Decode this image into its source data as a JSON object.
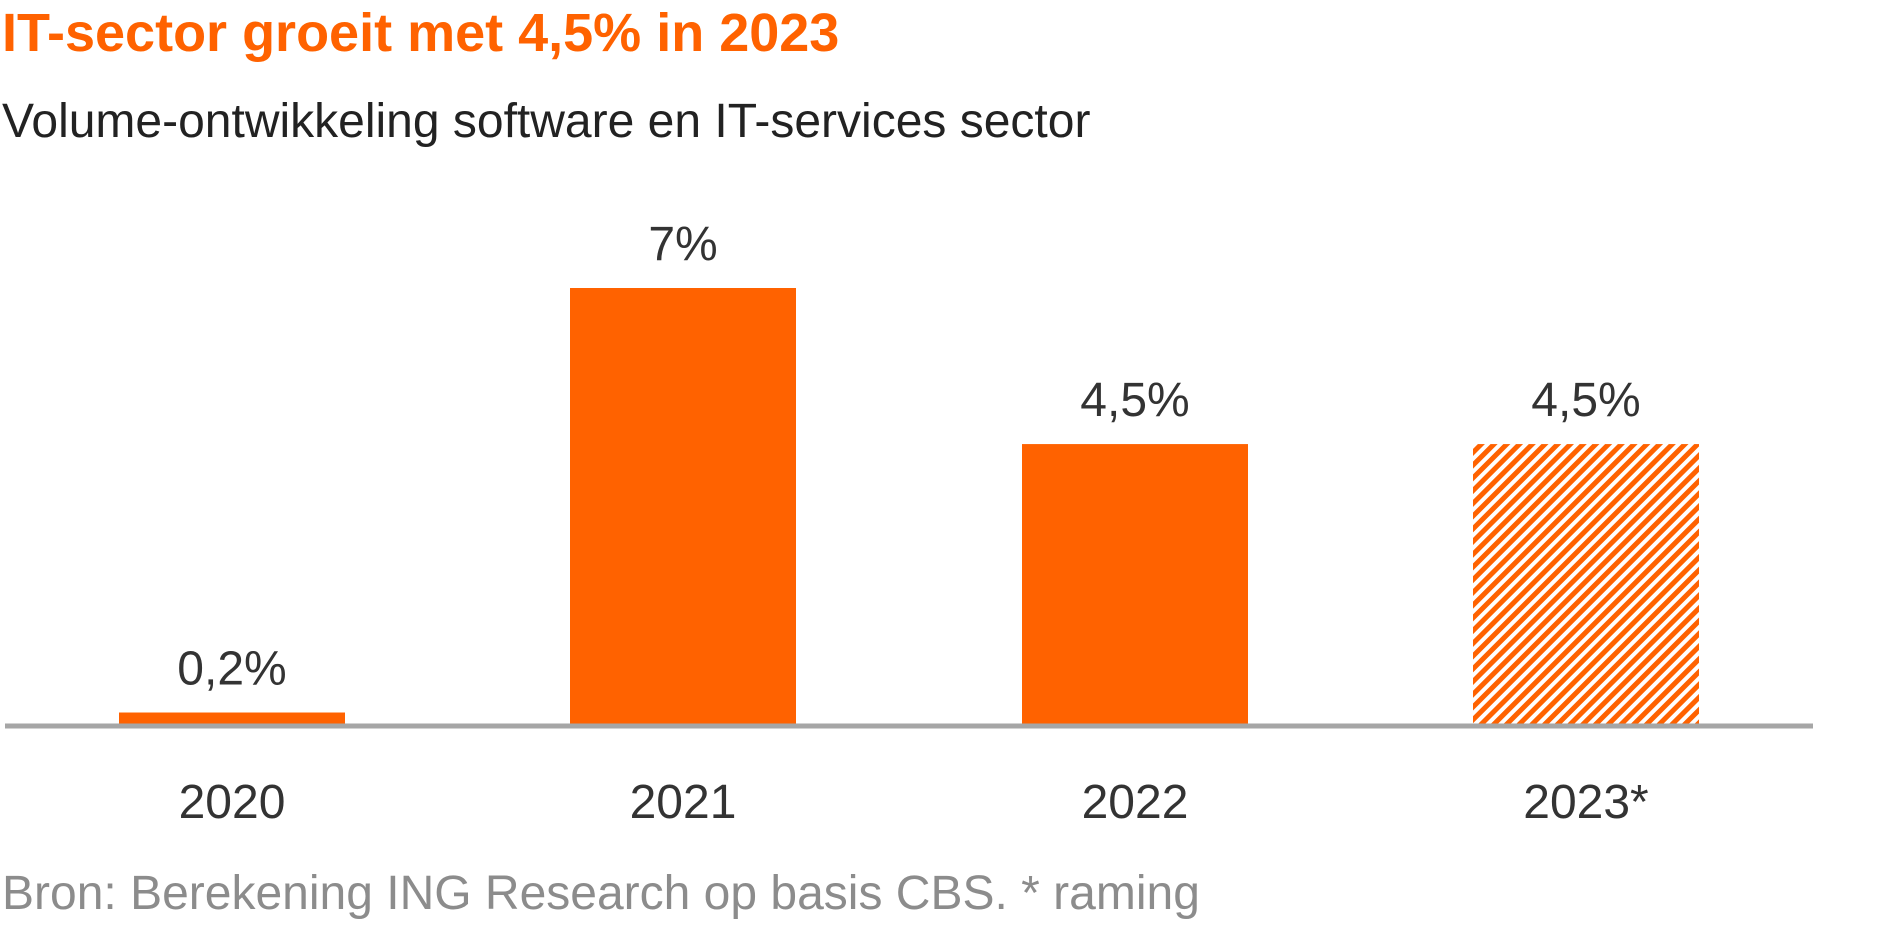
{
  "chart_data": {
    "type": "bar",
    "title": "IT-sector groeit met 4,5% in 2023",
    "subtitle": "Volume-ontwikkeling software en IT-services sector",
    "categories": [
      "2020",
      "2021",
      "2022",
      "2023*"
    ],
    "values": [
      0.2,
      7,
      4.5,
      4.5
    ],
    "data_labels": [
      "0,2%",
      "7%",
      "4,5%",
      "4,5%"
    ],
    "estimate_flags": [
      false,
      false,
      false,
      true
    ],
    "ylim": [
      0,
      7
    ],
    "grid": false,
    "legend": "none",
    "source": "Bron: Berekening ING Research op basis CBS. * raming",
    "colors": {
      "bar": "#ff6200",
      "axis": "#a6a6a6",
      "label": "#333333",
      "title": "#ff6200",
      "source": "#8c8c8c"
    }
  }
}
